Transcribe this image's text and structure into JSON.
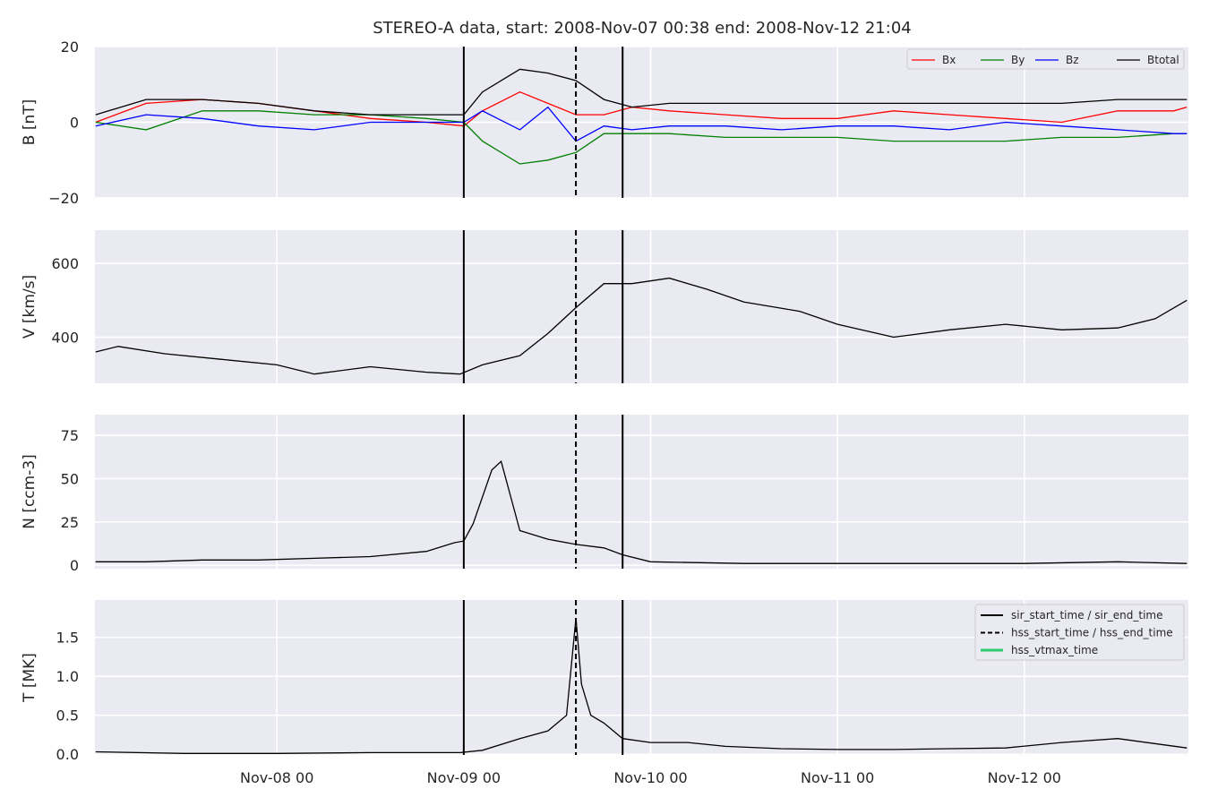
{
  "figure": {
    "title": "STEREO-A data, start: 2008-Nov-07 00:38  end: 2008-Nov-12 21:04"
  },
  "colors": {
    "panel_bg": "#eaeaf2",
    "grid": "#ffffff",
    "bx": "#ff0000",
    "by": "#008000",
    "bz": "#0000ff",
    "btotal": "#000000",
    "sir": "#000000",
    "hss": "#000000",
    "vtmax": "#2ecc71"
  },
  "chart_data": [
    {
      "type": "line",
      "ylabel": "B [nT]",
      "ylim": [
        -20,
        20
      ],
      "yticks": [
        -20,
        0,
        20
      ],
      "ytick_labels": [
        "−20",
        "0",
        "20"
      ],
      "grid": true,
      "legend": "top-right",
      "x_unit": "days since 2008-Nov-07 00:00",
      "series": [
        {
          "name": "Bx",
          "x": [
            0.03,
            0.3,
            0.6,
            0.9,
            1.2,
            1.5,
            1.8,
            2.0,
            2.1,
            2.3,
            2.45,
            2.6,
            2.75,
            2.9,
            3.1,
            3.4,
            3.7,
            4.0,
            4.3,
            4.6,
            4.9,
            5.2,
            5.5,
            5.8,
            5.87
          ],
          "y": [
            0,
            5,
            6,
            5,
            3,
            1,
            0,
            -1,
            3,
            8,
            5,
            2,
            2,
            4,
            3,
            2,
            1,
            1,
            3,
            2,
            1,
            0,
            3,
            3,
            4
          ]
        },
        {
          "name": "By",
          "x": [
            0.03,
            0.3,
            0.6,
            0.9,
            1.2,
            1.5,
            1.8,
            2.0,
            2.1,
            2.3,
            2.45,
            2.6,
            2.75,
            2.9,
            3.1,
            3.4,
            3.7,
            4.0,
            4.3,
            4.6,
            4.9,
            5.2,
            5.5,
            5.8,
            5.87
          ],
          "y": [
            0,
            -2,
            3,
            3,
            2,
            2,
            1,
            0,
            -5,
            -11,
            -10,
            -8,
            -3,
            -3,
            -3,
            -4,
            -4,
            -4,
            -5,
            -5,
            -5,
            -4,
            -4,
            -3,
            -3
          ]
        },
        {
          "name": "Bz",
          "x": [
            0.03,
            0.3,
            0.6,
            0.9,
            1.2,
            1.5,
            1.8,
            2.0,
            2.1,
            2.3,
            2.45,
            2.6,
            2.75,
            2.9,
            3.1,
            3.4,
            3.7,
            4.0,
            4.3,
            4.6,
            4.9,
            5.2,
            5.5,
            5.8,
            5.87
          ],
          "y": [
            -1,
            2,
            1,
            -1,
            -2,
            0,
            0,
            0,
            3,
            -2,
            4,
            -5,
            -1,
            -2,
            -1,
            -1,
            -2,
            -1,
            -1,
            -2,
            0,
            -1,
            -2,
            -3,
            -3
          ]
        },
        {
          "name": "Btotal",
          "x": [
            0.03,
            0.3,
            0.6,
            0.9,
            1.2,
            1.5,
            1.8,
            2.0,
            2.1,
            2.3,
            2.45,
            2.6,
            2.75,
            2.9,
            3.1,
            3.4,
            3.7,
            4.0,
            4.3,
            4.6,
            4.9,
            5.2,
            5.5,
            5.8,
            5.87
          ],
          "y": [
            2,
            6,
            6,
            5,
            3,
            2,
            2,
            2,
            8,
            14,
            13,
            11,
            6,
            4,
            5,
            5,
            5,
            5,
            5,
            5,
            5,
            5,
            6,
            6,
            6
          ]
        }
      ]
    },
    {
      "type": "line",
      "ylabel": "V [km/s]",
      "ylim": [
        275,
        690
      ],
      "yticks": [
        400,
        600
      ],
      "ytick_labels": [
        "400",
        "600"
      ],
      "grid": true,
      "x_unit": "days since 2008-Nov-07 00:00",
      "series": [
        {
          "x": [
            0.03,
            0.15,
            0.4,
            0.7,
            1.0,
            1.2,
            1.5,
            1.8,
            1.98,
            2.1,
            2.3,
            2.45,
            2.6,
            2.75,
            2.9,
            3.1,
            3.3,
            3.5,
            3.8,
            4.0,
            4.3,
            4.6,
            4.9,
            5.2,
            5.5,
            5.7,
            5.87
          ],
          "y": [
            360,
            375,
            355,
            340,
            325,
            300,
            320,
            305,
            300,
            325,
            350,
            410,
            480,
            545,
            545,
            560,
            530,
            495,
            470,
            435,
            400,
            420,
            435,
            420,
            425,
            450,
            500
          ]
        }
      ]
    },
    {
      "type": "line",
      "ylabel": "N [ccm-3]",
      "ylim": [
        -2,
        87
      ],
      "yticks": [
        0,
        25,
        50,
        75
      ],
      "ytick_labels": [
        "0",
        "25",
        "50",
        "75"
      ],
      "grid": true,
      "x_unit": "days since 2008-Nov-07 00:00",
      "series": [
        {
          "x": [
            0.03,
            0.3,
            0.6,
            0.9,
            1.2,
            1.5,
            1.8,
            1.95,
            2.0,
            2.05,
            2.15,
            2.2,
            2.3,
            2.45,
            2.6,
            2.75,
            2.85,
            3.0,
            3.5,
            4.0,
            4.5,
            5.0,
            5.5,
            5.87
          ],
          "y": [
            2,
            2,
            3,
            3,
            4,
            5,
            8,
            13,
            14,
            24,
            55,
            60,
            20,
            15,
            12,
            10,
            6,
            2,
            1,
            1,
            1,
            1,
            2,
            1
          ]
        }
      ]
    },
    {
      "type": "line",
      "ylabel": "T [MK]",
      "ylim": [
        -0.01,
        1.98
      ],
      "yticks": [
        0.0,
        0.5,
        1.0,
        1.5
      ],
      "ytick_labels": [
        "0.0",
        "0.5",
        "1.0",
        "1.5"
      ],
      "grid": true,
      "legend": "top-right",
      "x_unit": "days since 2008-Nov-07 00:00",
      "xtick_values": [
        1,
        2,
        3,
        4,
        5
      ],
      "xtick_labels": [
        "Nov-08 00",
        "Nov-09 00",
        "Nov-10 00",
        "Nov-11 00",
        "Nov-12 00"
      ],
      "xlim": [
        0.026,
        5.878
      ],
      "series": [
        {
          "x": [
            0.03,
            0.5,
            1.0,
            1.5,
            1.98,
            2.1,
            2.3,
            2.45,
            2.55,
            2.6,
            2.63,
            2.68,
            2.75,
            2.85,
            3.0,
            3.2,
            3.4,
            3.7,
            4.0,
            4.3,
            4.6,
            4.9,
            5.2,
            5.5,
            5.87
          ],
          "y": [
            0.03,
            0.01,
            0.01,
            0.02,
            0.02,
            0.05,
            0.2,
            0.3,
            0.5,
            1.75,
            0.9,
            0.5,
            0.4,
            0.2,
            0.15,
            0.15,
            0.1,
            0.07,
            0.06,
            0.06,
            0.07,
            0.08,
            0.15,
            0.2,
            0.08
          ]
        }
      ]
    }
  ],
  "events": {
    "sir_times": [
      2.0,
      2.85
    ],
    "hss_start": 2.6
  },
  "legend_b": [
    {
      "label": "Bx"
    },
    {
      "label": "By"
    },
    {
      "label": "Bz"
    },
    {
      "label": "Btotal"
    }
  ],
  "legend_events": [
    {
      "label": "sir_start_time / sir_end_time"
    },
    {
      "label": "hss_start_time / hss_end_time"
    },
    {
      "label": "hss_vtmax_time"
    }
  ]
}
